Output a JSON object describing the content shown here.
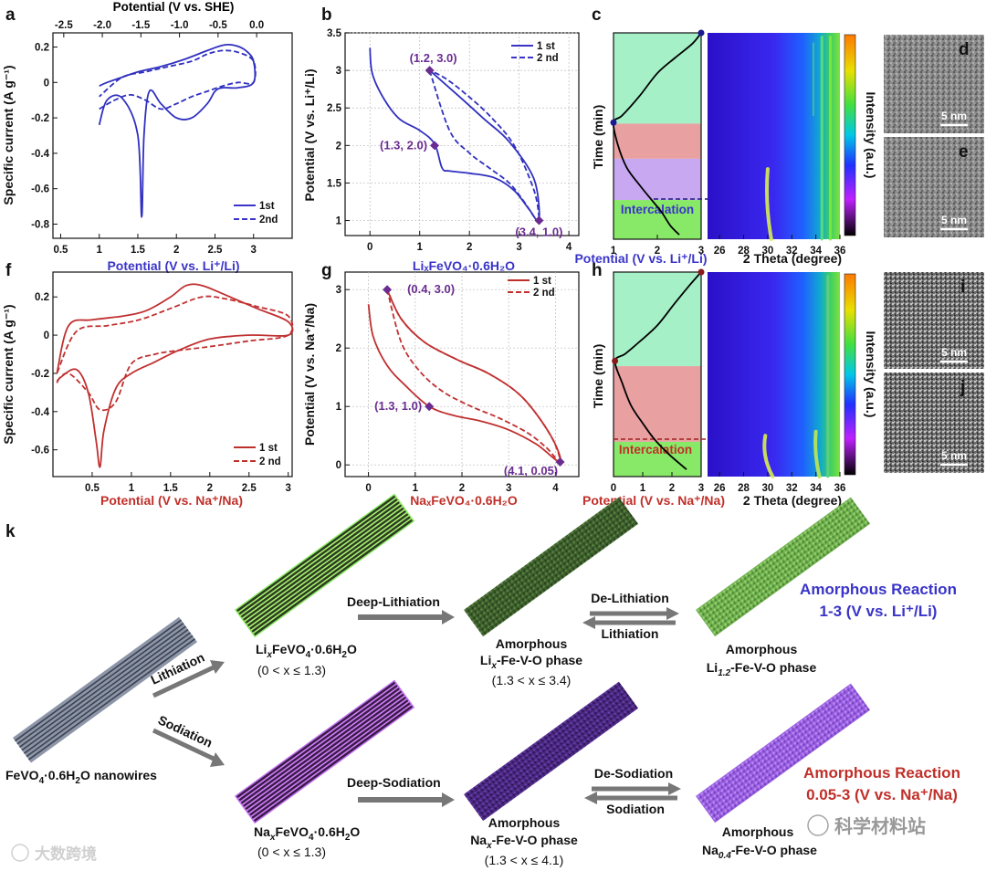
{
  "panel_labels": [
    "a",
    "b",
    "c",
    "d",
    "e",
    "f",
    "g",
    "h",
    "i",
    "j",
    "k"
  ],
  "chart_data": [
    {
      "id": "a",
      "type": "line",
      "top_axis_label": "Potential (V vs. SHE)",
      "top_ticks": [
        "-2.5",
        "-2.0",
        "-1.5",
        "-1.0",
        "-0.5",
        "0.0"
      ],
      "xlabel": "Potential (V vs. Li⁺/Li)",
      "ylabel": "Specific current (A g⁻¹)",
      "xlim": [
        0.4,
        3.5
      ],
      "ylim": [
        -0.88,
        0.28
      ],
      "xticks": [
        0.5,
        1.0,
        1.5,
        2.0,
        2.5,
        3.0
      ],
      "yticks": [
        0.2,
        0.0,
        -0.2,
        -0.4,
        -0.6,
        -0.8
      ],
      "legend": "bottom-right",
      "series": [
        {
          "name": "1st",
          "style": "solid",
          "color": "#3030c0",
          "x": [
            1.0,
            1.1,
            1.3,
            1.5,
            1.55,
            1.58,
            1.65,
            1.8,
            2.0,
            2.2,
            2.4,
            2.5,
            2.6,
            2.8,
            3.0,
            3.0,
            2.9,
            2.75,
            2.6,
            2.4,
            2.1,
            1.8,
            1.5,
            1.3,
            1.1,
            1.0
          ],
          "y": [
            -0.24,
            -0.1,
            -0.09,
            -0.3,
            -0.76,
            -0.3,
            -0.05,
            -0.12,
            -0.2,
            -0.2,
            -0.12,
            -0.05,
            -0.03,
            -0.03,
            0.0,
            0.12,
            0.18,
            0.21,
            0.21,
            0.18,
            0.13,
            0.09,
            0.06,
            0.03,
            0.0,
            -0.02
          ]
        },
        {
          "name": "2nd",
          "style": "dashed",
          "color": "#3030c0",
          "x": [
            1.0,
            1.2,
            1.4,
            1.6,
            1.8,
            2.0,
            2.2,
            2.4,
            2.6,
            2.8,
            3.0,
            3.0,
            2.8,
            2.6,
            2.4,
            2.2,
            1.9,
            1.6,
            1.3,
            1.0
          ],
          "y": [
            -0.15,
            -0.1,
            -0.07,
            -0.1,
            -0.15,
            -0.12,
            -0.08,
            -0.05,
            -0.02,
            0.0,
            0.0,
            0.12,
            0.17,
            0.18,
            0.16,
            0.12,
            0.09,
            0.06,
            0.03,
            -0.08
          ]
        }
      ]
    },
    {
      "id": "b",
      "type": "line",
      "xlabel": "LiₓFeVO₄·0.6H₂O",
      "ylabel": "Potential (V vs. Li⁺/Li)",
      "xlim": [
        -0.5,
        4.2
      ],
      "ylim": [
        0.8,
        3.5
      ],
      "xticks": [
        0,
        1,
        2,
        3,
        4
      ],
      "yticks": [
        1.0,
        1.5,
        2.0,
        2.5,
        3.0,
        3.5
      ],
      "grid": true,
      "legend": "top-right",
      "annotations": [
        {
          "text": "(1.2, 3.0)",
          "x": 1.2,
          "y": 3.0
        },
        {
          "text": "(1.3, 2.0)",
          "x": 1.3,
          "y": 2.0
        },
        {
          "text": "(3.4, 1.0)",
          "x": 3.4,
          "y": 1.0
        }
      ],
      "series": [
        {
          "name": "1 st",
          "style": "solid",
          "color": "#3030c0",
          "x": [
            0.0,
            0.05,
            0.3,
            0.6,
            1.0,
            1.3,
            1.45,
            1.6,
            2.0,
            2.5,
            2.9,
            3.2,
            3.4,
            3.3,
            2.8,
            2.3,
            1.8,
            1.2
          ],
          "y": [
            3.3,
            2.95,
            2.6,
            2.35,
            2.2,
            2.02,
            1.7,
            1.66,
            1.63,
            1.57,
            1.4,
            1.15,
            1.0,
            1.55,
            2.05,
            2.35,
            2.65,
            3.0
          ]
        },
        {
          "name": "2 nd",
          "style": "dashed",
          "color": "#3030c0",
          "x": [
            1.2,
            1.6,
            2.0,
            2.4,
            2.8,
            3.1,
            3.3,
            3.4,
            3.3,
            2.9,
            2.4,
            1.9,
            1.5,
            1.2
          ],
          "y": [
            3.0,
            2.2,
            1.9,
            1.7,
            1.5,
            1.25,
            1.05,
            1.0,
            1.4,
            2.0,
            2.4,
            2.7,
            2.9,
            3.0
          ]
        }
      ]
    },
    {
      "id": "c",
      "type": "line",
      "xlabel": "Potential (V vs. Li⁺/Li)",
      "ylabel": "Time  (min)",
      "xlim": [
        1,
        3
      ],
      "xticks": [
        1,
        2,
        3
      ],
      "bands": [
        {
          "name": "top",
          "color": "#a6f0c8"
        },
        {
          "name": "mid",
          "color": "#e8a0a0"
        },
        {
          "name": "low",
          "color": "#c8a8f0"
        },
        {
          "name": "bottom",
          "color": "#88e868"
        }
      ],
      "band_label": "Intercalation",
      "series": [
        {
          "name": "",
          "style": "solid",
          "color": "#000",
          "x": [
            3.0,
            2.8,
            2.4,
            2.0,
            1.6,
            1.2,
            1.0,
            1.1,
            1.3,
            1.6,
            1.9,
            2.1,
            2.3,
            2.5
          ],
          "y": [
            0,
            12,
            28,
            45,
            70,
            92,
            100,
            125,
            150,
            170,
            188,
            200,
            215,
            225
          ]
        }
      ]
    },
    {
      "id": "c-heatmap",
      "type": "heatmap",
      "xlabel": "2 Theta (degree)",
      "xlim": [
        25,
        36
      ],
      "xticks": [
        26,
        28,
        30,
        32,
        34,
        36
      ],
      "colorbar_label": "Intensity (a.u.)"
    },
    {
      "id": "f",
      "type": "line",
      "xlabel": "Potential (V vs. Na⁺/Na)",
      "ylabel": "Specific current (A g⁻¹)",
      "xlim": [
        0.0,
        3.05
      ],
      "ylim": [
        -0.74,
        0.33
      ],
      "xticks": [
        0.5,
        1.0,
        1.5,
        2.0,
        2.5,
        3.0
      ],
      "yticks": [
        0.2,
        0.0,
        -0.2,
        -0.4,
        -0.6
      ],
      "legend": "bottom-right",
      "series": [
        {
          "name": "1 st",
          "style": "solid",
          "color": "#c03030",
          "x": [
            0.05,
            0.1,
            0.3,
            0.45,
            0.55,
            0.6,
            0.65,
            0.8,
            1.0,
            1.3,
            1.6,
            2.0,
            2.5,
            3.0,
            3.0,
            2.6,
            2.2,
            1.9,
            1.7,
            1.5,
            1.2,
            0.9,
            0.5,
            0.2,
            0.05
          ],
          "y": [
            -0.25,
            -0.22,
            -0.18,
            -0.3,
            -0.55,
            -0.69,
            -0.5,
            -0.28,
            -0.2,
            -0.14,
            -0.08,
            -0.02,
            0.0,
            0.0,
            0.07,
            0.14,
            0.21,
            0.26,
            0.26,
            0.2,
            0.13,
            0.1,
            0.08,
            0.05,
            -0.2
          ]
        },
        {
          "name": "2 nd",
          "style": "dashed",
          "color": "#c03030",
          "x": [
            0.05,
            0.2,
            0.45,
            0.6,
            0.8,
            1.0,
            1.3,
            1.6,
            2.0,
            2.5,
            3.0,
            3.0,
            2.6,
            2.2,
            1.9,
            1.5,
            1.1,
            0.7,
            0.3,
            0.05
          ],
          "y": [
            -0.24,
            -0.2,
            -0.3,
            -0.39,
            -0.35,
            -0.15,
            -0.1,
            -0.08,
            -0.06,
            -0.03,
            0.0,
            0.1,
            0.15,
            0.19,
            0.2,
            0.14,
            0.08,
            0.05,
            0.02,
            -0.2
          ]
        }
      ]
    },
    {
      "id": "g",
      "type": "line",
      "xlabel": "NaₓFeVO₄·0.6H₂O",
      "ylabel": "Potential (V vs. Na⁺/Na)",
      "xlim": [
        -0.5,
        4.5
      ],
      "ylim": [
        -0.2,
        3.3
      ],
      "xticks": [
        0,
        1,
        2,
        3,
        4
      ],
      "yticks": [
        0.0,
        1.0,
        2.0,
        3.0
      ],
      "grid": true,
      "legend": "top-right",
      "annotations": [
        {
          "text": "(0.4, 3.0)",
          "x": 0.4,
          "y": 3.0
        },
        {
          "text": "(1.3, 1.0)",
          "x": 1.3,
          "y": 1.0
        },
        {
          "text": "(4.1, 0.05)",
          "x": 4.1,
          "y": 0.05
        }
      ],
      "series": [
        {
          "name": "1 st",
          "style": "solid",
          "color": "#c03030",
          "x": [
            0.0,
            0.1,
            0.4,
            0.8,
            1.3,
            1.8,
            2.4,
            3.0,
            3.6,
            4.1,
            3.9,
            3.3,
            2.6,
            1.9,
            1.2,
            0.7,
            0.4
          ],
          "y": [
            2.75,
            2.2,
            1.7,
            1.35,
            1.0,
            0.85,
            0.75,
            0.6,
            0.35,
            0.05,
            0.5,
            1.15,
            1.55,
            1.8,
            2.1,
            2.5,
            3.0
          ]
        },
        {
          "name": "2 nd",
          "style": "dashed",
          "color": "#c03030",
          "x": [
            0.4,
            0.7,
            1.1,
            1.6,
            2.2,
            2.8,
            3.4,
            3.8,
            4.1,
            3.9,
            3.3,
            2.6,
            1.9,
            1.2,
            0.7,
            0.4
          ],
          "y": [
            3.0,
            2.1,
            1.6,
            1.25,
            1.0,
            0.8,
            0.55,
            0.3,
            0.05,
            0.5,
            1.15,
            1.55,
            1.8,
            2.1,
            2.5,
            3.0
          ]
        }
      ]
    },
    {
      "id": "h",
      "type": "line",
      "xlabel": "Potential (V vs. Na⁺/Na)",
      "ylabel": "Time  (min)",
      "xlim": [
        0,
        3
      ],
      "xticks": [
        0,
        1,
        2,
        3
      ],
      "bands": [
        {
          "name": "top",
          "color": "#a6f0c8"
        },
        {
          "name": "mid",
          "color": "#e8a0a0"
        },
        {
          "name": "bottom",
          "color": "#88e868"
        }
      ],
      "band_label": "Intercalation",
      "series": [
        {
          "name": "",
          "style": "solid",
          "color": "#000",
          "x": [
            3.0,
            2.6,
            2.1,
            1.5,
            0.9,
            0.4,
            0.05,
            0.3,
            0.6,
            1.0,
            1.4,
            1.9,
            2.5
          ],
          "y": [
            0,
            15,
            35,
            60,
            78,
            92,
            100,
            125,
            150,
            170,
            188,
            205,
            222
          ]
        }
      ]
    },
    {
      "id": "h-heatmap",
      "type": "heatmap",
      "xlabel": "2 Theta (degree)",
      "xlim": [
        25,
        36
      ],
      "xticks": [
        26,
        28,
        30,
        32,
        34,
        36
      ],
      "colorbar_label": "Intensity (a.u.)"
    }
  ],
  "tem": {
    "d_scale": "5 nm",
    "e_scale": "5 nm",
    "i_scale": "5 nm",
    "j_scale": "5 nm"
  },
  "schematic": {
    "start_label_a": "FeVO",
    "start_label_b": "4",
    "start_label_c": "·0.6H",
    "start_label_d": "2",
    "start_label_e": "O nanowires",
    "arrow_lithiation": "Lithiation",
    "arrow_sodiation": "Sodiation",
    "li_phase_a": "Li",
    "li_phase_b": "x",
    "li_phase_c": "FeVO",
    "li_phase_d": "4",
    "li_phase_e": "·0.6H",
    "li_phase_f": "2",
    "li_phase_g": "O",
    "li_range": "(0 < x ≤ 1.3)",
    "deep_lithiation": "Deep-Lithiation",
    "amorph_li_1": "Amorphous",
    "amorph_li_2a": "Li",
    "amorph_li_2b": "x",
    "amorph_li_2c": "-Fe-V-O phase",
    "amorph_li_range": "(1.3 < x ≤ 3.4)",
    "delithiation": "De-Lithiation",
    "lithiation2": "Lithiation",
    "amorph_li12_1": "Amorphous",
    "amorph_li12_2a": "Li",
    "amorph_li12_2b": "1.2",
    "amorph_li12_2c": "-Fe-V-O phase",
    "reaction_li_1": "Amorphous Reaction",
    "reaction_li_2": "1-3 (V vs. Li⁺/Li)",
    "na_phase_a": "Na",
    "na_phase_b": "x",
    "na_phase_c": "FeVO",
    "na_phase_d": "4",
    "na_phase_e": "·0.6H",
    "na_phase_f": "2",
    "na_phase_g": "O",
    "na_range": "(0 < x ≤ 1.3)",
    "deep_sodiation": "Deep-Sodiation",
    "amorph_na_1": "Amorphous",
    "amorph_na_2a": "Na",
    "amorph_na_2b": "x",
    "amorph_na_2c": "-Fe-V-O phase",
    "amorph_na_range": "(1.3 < x ≤ 4.1)",
    "desodiation": "De-Sodiation",
    "sodiation2": "Sodiation",
    "amorph_na04_1": "Amorphous",
    "amorph_na04_2a": "Na",
    "amorph_na04_2b": "0.4",
    "amorph_na04_2c": "-Fe-V-O phase",
    "reaction_na_1": "Amorphous Reaction",
    "reaction_na_2": "0.05-3 (V vs. Na⁺/Na)"
  },
  "watermarks": {
    "left": "大数跨境",
    "right": "科学材料站"
  },
  "colors": {
    "li": "#3a34c8",
    "na": "#c0302a",
    "arrow": "#777777"
  }
}
